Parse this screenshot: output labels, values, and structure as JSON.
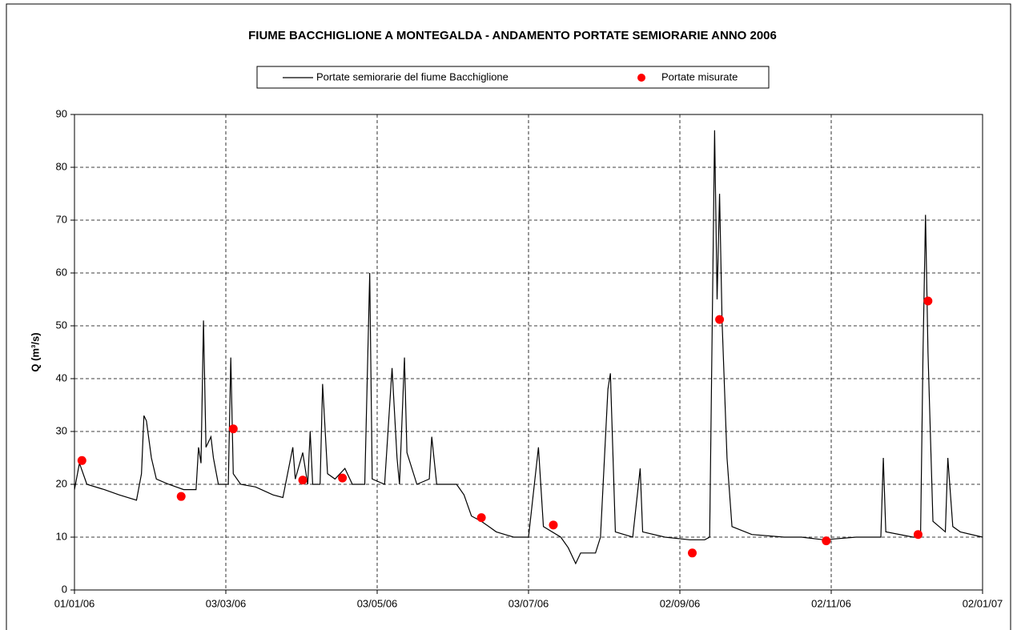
{
  "chart_data": {
    "type": "line",
    "title": "FIUME BACCHIGLIONE A MONTEGALDA - ANDAMENTO PORTATE SEMIORARIE ANNO 2006",
    "ylabel": "Q (m³/s)",
    "xlim": [
      "2006-01-01",
      "2007-01-02"
    ],
    "xticks": [
      {
        "value": "2006-01-01",
        "label": "01/01/06"
      },
      {
        "value": "2006-03-03",
        "label": "03/03/06"
      },
      {
        "value": "2006-05-03",
        "label": "03/05/06"
      },
      {
        "value": "2006-07-03",
        "label": "03/07/06"
      },
      {
        "value": "2006-09-02",
        "label": "02/09/06"
      },
      {
        "value": "2006-11-02",
        "label": "02/11/06"
      },
      {
        "value": "2007-01-02",
        "label": "02/01/07"
      }
    ],
    "ylim": [
      0,
      90
    ],
    "yticks": [
      0,
      10,
      20,
      30,
      40,
      50,
      60,
      70,
      80,
      90
    ],
    "grid": true,
    "series": [
      {
        "name": "Portate semiorarie del fiume Bacchiglione",
        "style": "line",
        "color": "#000000",
        "x": [
          "2006-01-01",
          "2006-01-03",
          "2006-01-06",
          "2006-01-13",
          "2006-01-19",
          "2006-01-26",
          "2006-01-28",
          "2006-01-29",
          "2006-01-30",
          "2006-02-01",
          "2006-02-03",
          "2006-02-08",
          "2006-02-14",
          "2006-02-19",
          "2006-02-20",
          "2006-02-21",
          "2006-02-22",
          "2006-02-23",
          "2006-02-25",
          "2006-02-26",
          "2006-02-28",
          "2006-03-04",
          "2006-03-05",
          "2006-03-06",
          "2006-03-09",
          "2006-03-15",
          "2006-03-22",
          "2006-03-26",
          "2006-03-30",
          "2006-03-31",
          "2006-04-03",
          "2006-04-05",
          "2006-04-06",
          "2006-04-07",
          "2006-04-10",
          "2006-04-11",
          "2006-04-13",
          "2006-04-16",
          "2006-04-20",
          "2006-04-23",
          "2006-04-28",
          "2006-04-30",
          "2006-05-01",
          "2006-05-06",
          "2006-05-09",
          "2006-05-11",
          "2006-05-12",
          "2006-05-14",
          "2006-05-15",
          "2006-05-19",
          "2006-05-24",
          "2006-05-25",
          "2006-05-27",
          "2006-06-04",
          "2006-06-07",
          "2006-06-10",
          "2006-06-14",
          "2006-06-17",
          "2006-06-20",
          "2006-06-27",
          "2006-07-03",
          "2006-07-07",
          "2006-07-09",
          "2006-07-16",
          "2006-07-19",
          "2006-07-22",
          "2006-07-24",
          "2006-07-30",
          "2006-08-01",
          "2006-08-04",
          "2006-08-05",
          "2006-08-07",
          "2006-08-14",
          "2006-08-17",
          "2006-08-18",
          "2006-08-27",
          "2006-09-06",
          "2006-09-12",
          "2006-09-14",
          "2006-09-16",
          "2006-09-17",
          "2006-09-18",
          "2006-09-19",
          "2006-09-21",
          "2006-09-23",
          "2006-10-01",
          "2006-10-14",
          "2006-10-21",
          "2006-10-30",
          "2006-11-12",
          "2006-11-22",
          "2006-11-23",
          "2006-11-24",
          "2006-12-05",
          "2006-12-08",
          "2006-12-09",
          "2006-12-10",
          "2006-12-11",
          "2006-12-13",
          "2006-12-18",
          "2006-12-19",
          "2006-12-21",
          "2006-12-24",
          "2007-01-02"
        ],
        "values": [
          19,
          24,
          20,
          19,
          18,
          17,
          22,
          33,
          32,
          25,
          21,
          20,
          19,
          19,
          27,
          24,
          51,
          27,
          29,
          25,
          20,
          20,
          44,
          22,
          20,
          19.5,
          18,
          17.5,
          27,
          21,
          26,
          20,
          30,
          20,
          20,
          39,
          22,
          21,
          23,
          20,
          20,
          60,
          21,
          20,
          42,
          25,
          20,
          44,
          26,
          20,
          21,
          29,
          20,
          20,
          18,
          14,
          13,
          12,
          11,
          10,
          10,
          27,
          12,
          10,
          8,
          5,
          7,
          7,
          10,
          38,
          41,
          11,
          10,
          23,
          11,
          10,
          9.5,
          9.5,
          10,
          87,
          55,
          75,
          51,
          25,
          12,
          10.5,
          10,
          10,
          9.5,
          10,
          10,
          25,
          11,
          10,
          10,
          45,
          71,
          45,
          13,
          11,
          25,
          12,
          11,
          10
        ]
      },
      {
        "name": "Portate misurate",
        "style": "markers",
        "color": "#ff0000",
        "x": [
          "2006-01-04",
          "2006-02-13",
          "2006-03-06",
          "2006-04-03",
          "2006-04-19",
          "2006-06-14",
          "2006-07-13",
          "2006-09-07",
          "2006-09-18",
          "2006-10-31",
          "2006-12-07",
          "2006-12-11"
        ],
        "values": [
          24.5,
          17.7,
          30.5,
          20.8,
          21.2,
          13.7,
          12.3,
          7.0,
          51.2,
          9.3,
          10.5,
          54.7
        ]
      }
    ]
  }
}
